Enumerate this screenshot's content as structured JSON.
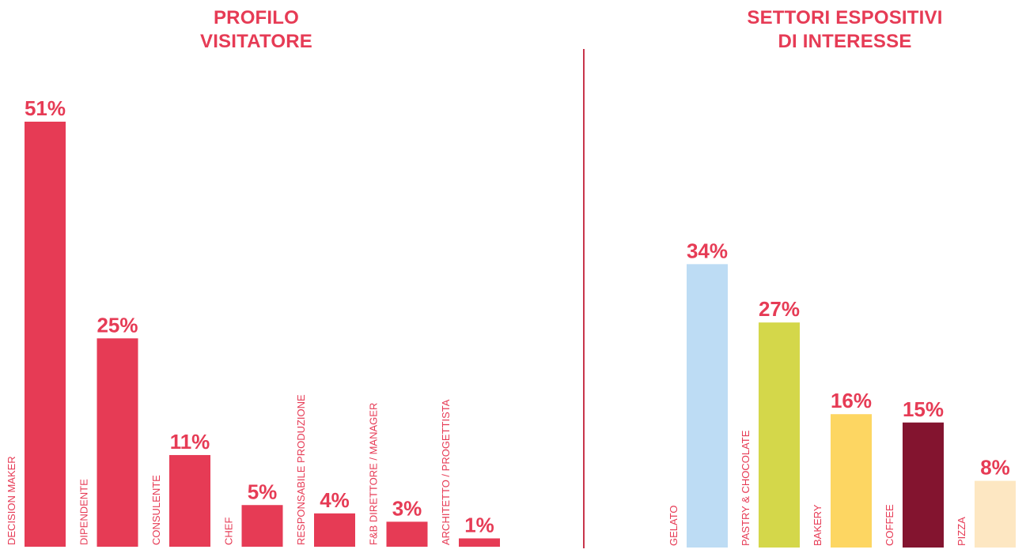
{
  "chart_data": [
    {
      "type": "bar",
      "title": [
        "PROFILO",
        "VISITATORE"
      ],
      "categories": [
        "DECISION MAKER",
        "DIPENDENTE",
        "CONSULENTE",
        "CHEF",
        "RESPONSABILE PRODUZIONE",
        "F&B DIRETTORE / MANAGER",
        "ARCHITETTO / PROGETTISTA"
      ],
      "values": [
        51,
        25,
        11,
        5,
        4,
        3,
        1
      ],
      "labels": [
        "51%",
        "25%",
        "11%",
        "5%",
        "4%",
        "3%",
        "1%"
      ],
      "colors": [
        "#e63b55",
        "#e63b55",
        "#e63b55",
        "#e63b55",
        "#e63b55",
        "#e63b55",
        "#e63b55"
      ],
      "ylim": [
        0,
        51
      ]
    },
    {
      "type": "bar",
      "title": [
        "SETTORI ESPOSITIVI",
        "DI INTERESSE"
      ],
      "categories": [
        "GELATO",
        "PASTRY & CHOCOLATE",
        "BAKERY",
        "COFFEE",
        "PIZZA"
      ],
      "values": [
        34,
        27,
        16,
        15,
        8
      ],
      "labels": [
        "34%",
        "27%",
        "16%",
        "15%",
        "8%"
      ],
      "colors": [
        "#bddcf4",
        "#d4d74a",
        "#fdd662",
        "#83142f",
        "#fde7c2"
      ],
      "ylim": [
        0,
        51
      ]
    }
  ],
  "colors": {
    "accent": "#e63b55",
    "divider": "#c8354c"
  }
}
